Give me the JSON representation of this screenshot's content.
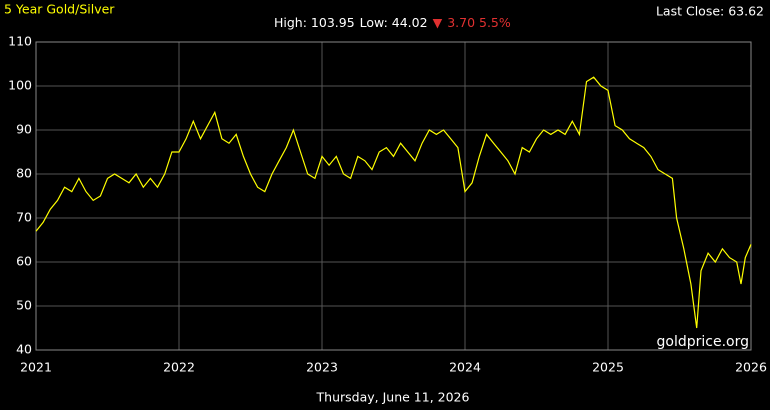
{
  "chart_data": {
    "type": "line",
    "title": "5 Year Gold/Silver",
    "last_close": "Last Close: 63.62",
    "high": "High: 103.95",
    "low": "Low: 44.02",
    "change_arrow": "▼",
    "change": "3.70 5.5%",
    "date": "Thursday, June 11, 2026",
    "watermark": "goldprice.org",
    "xlim": [
      2021,
      2026
    ],
    "xticks": [
      2021,
      2022,
      2023,
      2024,
      2025,
      2026
    ],
    "ylim": [
      40,
      110
    ],
    "yticks": [
      40,
      50,
      60,
      70,
      80,
      90,
      100,
      110
    ],
    "grid": true,
    "series": [
      {
        "color": "#ffff00",
        "x": [
          2021.0,
          2021.05,
          2021.1,
          2021.15,
          2021.2,
          2021.25,
          2021.3,
          2021.35,
          2021.4,
          2021.45,
          2021.5,
          2021.55,
          2021.6,
          2021.65,
          2021.7,
          2021.75,
          2021.8,
          2021.85,
          2021.9,
          2021.95,
          2022.0,
          2022.05,
          2022.1,
          2022.15,
          2022.2,
          2022.25,
          2022.3,
          2022.35,
          2022.4,
          2022.45,
          2022.5,
          2022.55,
          2022.6,
          2022.65,
          2022.7,
          2022.75,
          2022.8,
          2022.85,
          2022.9,
          2022.95,
          2023.0,
          2023.05,
          2023.1,
          2023.15,
          2023.2,
          2023.25,
          2023.3,
          2023.35,
          2023.4,
          2023.45,
          2023.5,
          2023.55,
          2023.6,
          2023.65,
          2023.7,
          2023.75,
          2023.8,
          2023.85,
          2023.9,
          2023.95,
          2024.0,
          2024.05,
          2024.1,
          2024.15,
          2024.2,
          2024.25,
          2024.3,
          2024.35,
          2024.4,
          2024.45,
          2024.5,
          2024.55,
          2024.6,
          2024.65,
          2024.7,
          2024.75,
          2024.8,
          2024.85,
          2024.9,
          2024.95,
          2025.0,
          2025.05,
          2025.1,
          2025.15,
          2025.2,
          2025.25,
          2025.3,
          2025.35,
          2025.4,
          2025.45,
          2025.48,
          2025.53,
          2025.58,
          2025.62,
          2025.65,
          2025.7,
          2025.75,
          2025.8,
          2025.85,
          2025.9,
          2025.93,
          2025.96,
          2026.0
        ],
        "values": [
          67,
          69,
          72,
          74,
          77,
          76,
          79,
          76,
          74,
          75,
          79,
          80,
          79,
          78,
          80,
          77,
          79,
          77,
          80,
          85,
          85,
          88,
          92,
          88,
          91,
          94,
          88,
          87,
          89,
          84,
          80,
          77,
          76,
          80,
          83,
          86,
          90,
          85,
          80,
          79,
          84,
          82,
          84,
          80,
          79,
          84,
          83,
          81,
          85,
          86,
          84,
          87,
          85,
          83,
          87,
          90,
          89,
          90,
          88,
          86,
          76,
          78,
          84,
          89,
          87,
          85,
          83,
          80,
          86,
          85,
          88,
          90,
          89,
          90,
          89,
          92,
          89,
          101,
          102,
          100,
          99,
          91,
          90,
          88,
          87,
          86,
          84,
          81,
          80,
          79,
          70,
          63,
          55,
          45,
          58,
          62,
          60,
          63,
          61,
          60,
          55,
          61,
          64
        ]
      }
    ]
  }
}
